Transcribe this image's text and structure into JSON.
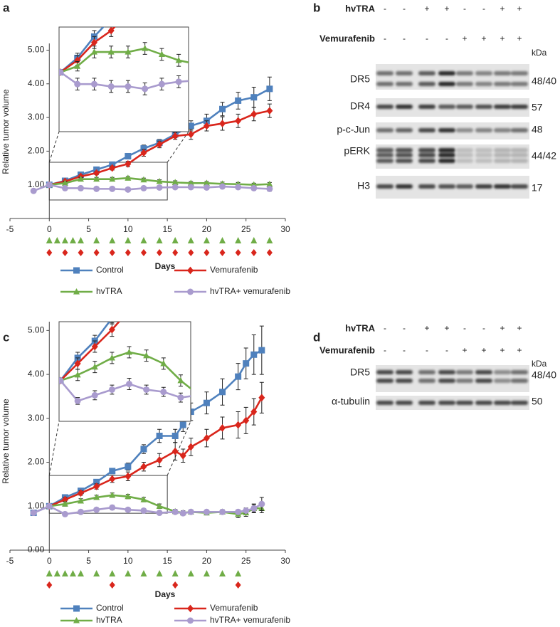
{
  "chart_data": [
    {
      "type": "line",
      "panel_label": "a",
      "y_label": "Relative tumor volume",
      "x_label": "Days",
      "xlim": [
        -5,
        30
      ],
      "xticks": [
        -5,
        0,
        5,
        10,
        15,
        20,
        25,
        30
      ],
      "ylim": [
        0,
        5.2
      ],
      "yticks": [
        {
          "value": 1,
          "label": "1.00"
        },
        {
          "value": 2,
          "label": "2.00"
        },
        {
          "value": 3,
          "label": "3.00"
        },
        {
          "value": 4,
          "label": "4.00"
        },
        {
          "value": 5,
          "label": "5.00"
        }
      ],
      "series": [
        {
          "name": "Control",
          "color": "#4f81bd",
          "marker": "square",
          "x": [
            0,
            2,
            4,
            6,
            8,
            10,
            12,
            14,
            16,
            18,
            20,
            22,
            24,
            26,
            28
          ],
          "values": [
            1.0,
            1.12,
            1.3,
            1.45,
            1.6,
            1.85,
            2.08,
            2.25,
            2.5,
            2.75,
            2.9,
            3.25,
            3.5,
            3.6,
            3.85
          ],
          "errors": [
            0,
            0.04,
            0.05,
            0.05,
            0.06,
            0.08,
            0.1,
            0.1,
            0.1,
            0.15,
            0.2,
            0.2,
            0.25,
            0.3,
            0.35
          ]
        },
        {
          "name": "Vemurafenib",
          "color": "#d9261c",
          "marker": "diamond",
          "x": [
            0,
            2,
            4,
            6,
            8,
            10,
            12,
            14,
            16,
            18,
            20,
            22,
            24,
            26,
            28
          ],
          "values": [
            1.0,
            1.1,
            1.25,
            1.35,
            1.5,
            1.62,
            1.95,
            2.2,
            2.45,
            2.5,
            2.75,
            2.82,
            2.9,
            3.1,
            3.2
          ],
          "errors": [
            0,
            0.04,
            0.05,
            0.05,
            0.06,
            0.08,
            0.1,
            0.1,
            0.1,
            0.15,
            0.15,
            0.2,
            0.2,
            0.2,
            0.2
          ],
          "dose_days": [
            0,
            2,
            4,
            6,
            8,
            10,
            12,
            14,
            16,
            18,
            20,
            22,
            24,
            26,
            28
          ]
        },
        {
          "name": "hvTRA",
          "color": "#70ad47",
          "marker": "triangle",
          "x": [
            0,
            2,
            4,
            6,
            8,
            10,
            12,
            14,
            16,
            18,
            20,
            22,
            24,
            26,
            28
          ],
          "values": [
            1.0,
            1.05,
            1.17,
            1.17,
            1.17,
            1.2,
            1.15,
            1.1,
            1.07,
            1.05,
            1.05,
            1.03,
            1.02,
            1.0,
            1.02
          ],
          "errors": [
            0,
            0.04,
            0.05,
            0.05,
            0.05,
            0.05,
            0.05,
            0.05,
            0.05,
            0.05,
            0.05,
            0.05,
            0.05,
            0.05,
            0.05
          ],
          "dose_days": [
            0,
            1,
            2,
            3,
            4,
            6,
            8,
            10,
            12,
            14,
            16,
            18,
            20,
            22,
            24,
            26,
            28
          ]
        },
        {
          "name": "hvTRA+ vemurafenib",
          "color": "#a99bce",
          "marker": "circle",
          "x": [
            -2,
            0,
            2,
            4,
            6,
            8,
            10,
            12,
            14,
            16,
            18,
            20,
            22,
            24,
            26,
            28
          ],
          "values": [
            0.82,
            1.0,
            0.9,
            0.9,
            0.88,
            0.88,
            0.86,
            0.9,
            0.92,
            0.93,
            0.93,
            0.92,
            0.95,
            0.93,
            0.9,
            0.88
          ],
          "errors": [
            0.03,
            0,
            0.05,
            0.05,
            0.05,
            0.05,
            0.05,
            0.05,
            0.05,
            0.05,
            0.05,
            0.05,
            0.05,
            0.05,
            0.06,
            0.07
          ]
        }
      ]
    },
    {
      "type": "line",
      "panel_label": "c",
      "y_label": "Relative tumor volume",
      "x_label": "Days",
      "xlim": [
        -5,
        30
      ],
      "xticks": [
        -5,
        0,
        5,
        10,
        15,
        20,
        25,
        30
      ],
      "ylim": [
        0,
        5.2
      ],
      "yticks": [
        {
          "value": 0,
          "label": "0.00"
        },
        {
          "value": 1,
          "label": "1.00"
        },
        {
          "value": 2,
          "label": "2.00"
        },
        {
          "value": 3,
          "label": "3.00"
        },
        {
          "value": 4,
          "label": "4.00"
        },
        {
          "value": 5,
          "label": "5.00"
        }
      ],
      "series": [
        {
          "name": "Control",
          "color": "#4f81bd",
          "marker": "square",
          "x": [
            -2,
            0,
            2,
            4,
            6,
            8,
            10,
            12,
            14,
            16,
            17,
            18,
            20,
            22,
            24,
            25,
            26,
            27
          ],
          "values": [
            0.85,
            1.0,
            1.2,
            1.35,
            1.55,
            1.8,
            1.9,
            2.3,
            2.6,
            2.6,
            2.85,
            3.15,
            3.35,
            3.6,
            3.95,
            4.25,
            4.45,
            4.55
          ],
          "errors": [
            0.05,
            0,
            0.05,
            0.05,
            0.05,
            0.06,
            0.08,
            0.1,
            0.15,
            0.15,
            0.15,
            0.2,
            0.25,
            0.3,
            0.3,
            0.35,
            0.45,
            0.55
          ]
        },
        {
          "name": "Vemurafenib",
          "color": "#d9261c",
          "marker": "diamond",
          "x": [
            0,
            2,
            4,
            6,
            8,
            10,
            12,
            14,
            16,
            17,
            18,
            20,
            22,
            24,
            25,
            26,
            27
          ],
          "values": [
            1.0,
            1.15,
            1.3,
            1.45,
            1.62,
            1.68,
            1.9,
            2.05,
            2.25,
            2.15,
            2.35,
            2.55,
            2.78,
            2.85,
            2.95,
            3.15,
            3.47
          ],
          "errors": [
            0,
            0.05,
            0.05,
            0.06,
            0.08,
            0.1,
            0.1,
            0.15,
            0.2,
            0.15,
            0.2,
            0.2,
            0.25,
            0.3,
            0.3,
            0.3,
            0.35
          ],
          "dose_days": [
            0,
            8,
            16,
            24
          ]
        },
        {
          "name": "hvTRA",
          "color": "#70ad47",
          "marker": "triangle",
          "x": [
            0,
            2,
            4,
            6,
            8,
            10,
            12,
            14,
            16,
            17,
            18,
            20,
            22,
            24,
            25,
            26,
            27
          ],
          "values": [
            1.0,
            1.05,
            1.12,
            1.2,
            1.25,
            1.22,
            1.15,
            1.0,
            0.88,
            0.85,
            0.87,
            0.85,
            0.87,
            0.82,
            0.85,
            0.95,
            0.95
          ],
          "errors": [
            0,
            0.05,
            0.05,
            0.05,
            0.05,
            0.05,
            0.05,
            0.05,
            0.05,
            0.05,
            0.05,
            0.05,
            0.05,
            0.08,
            0.08,
            0.1,
            0.1
          ],
          "dose_days": [
            0,
            1,
            2,
            3,
            4,
            6,
            8,
            10,
            12,
            14,
            16,
            18,
            20,
            22,
            24
          ]
        },
        {
          "name": "hvTRA+ vemurafenib",
          "color": "#a99bce",
          "marker": "circle",
          "x": [
            -2,
            0,
            2,
            4,
            6,
            8,
            10,
            12,
            14,
            16,
            17,
            18,
            20,
            22,
            24,
            25,
            26,
            27
          ],
          "values": [
            0.85,
            1.0,
            0.82,
            0.87,
            0.92,
            0.97,
            0.92,
            0.9,
            0.85,
            0.87,
            0.84,
            0.87,
            0.87,
            0.87,
            0.87,
            0.9,
            0.95,
            1.05
          ],
          "errors": [
            0.03,
            0,
            0.03,
            0.04,
            0.04,
            0.05,
            0.04,
            0.04,
            0.04,
            0.04,
            0.04,
            0.04,
            0.04,
            0.05,
            0.05,
            0.06,
            0.08,
            0.15
          ]
        }
      ]
    }
  ],
  "blots": [
    {
      "panel_label": "b",
      "unit": "kDa",
      "conditions": [
        {
          "name": "hvTRA",
          "signs": [
            "-",
            "-",
            "+",
            "+",
            "-",
            "-",
            "+",
            "+"
          ]
        },
        {
          "name": "Vemurafenib",
          "signs": [
            "-",
            "-",
            "-",
            "-",
            "+",
            "+",
            "+",
            "+"
          ]
        }
      ],
      "rows": [
        {
          "label": "DR5",
          "kda": "48/40"
        },
        {
          "label": "DR4",
          "kda": "57"
        },
        {
          "label": "p-c-Jun",
          "kda": "48"
        },
        {
          "label": "pERK",
          "kda": "44/42"
        },
        {
          "label": "H3",
          "kda": "17"
        }
      ]
    },
    {
      "panel_label": "d",
      "unit": "kDa",
      "conditions": [
        {
          "name": "hvTRA",
          "signs": [
            "-",
            "-",
            "+",
            "+",
            "-",
            "-",
            "+",
            "+"
          ]
        },
        {
          "name": "Vemurafenib",
          "signs": [
            "-",
            "-",
            "-",
            "-",
            "+",
            "+",
            "+",
            "+"
          ]
        }
      ],
      "rows": [
        {
          "label": "DR5",
          "kda": "48/40"
        },
        {
          "label": "α-tubulin",
          "kda": "50"
        }
      ]
    }
  ]
}
